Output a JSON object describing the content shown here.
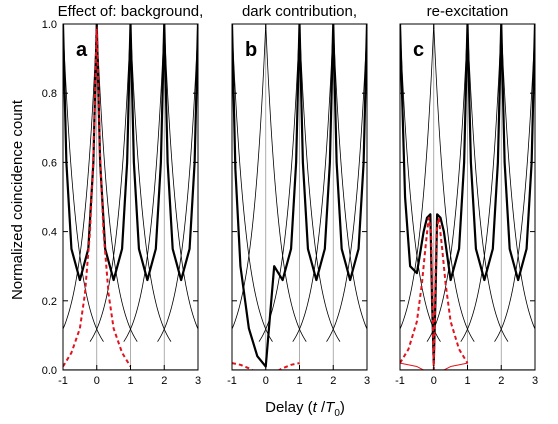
{
  "figure": {
    "ylabel": "Normalized coincidence count",
    "xlabel": {
      "main": "Delay (",
      "var": "t",
      "slash": " /",
      "T": "T",
      "sub": "0",
      "close": ")"
    }
  },
  "chart_data": [
    {
      "type": "line",
      "panel_letter": "a",
      "title": "Effect of: background,",
      "xlim": [
        -1,
        3
      ],
      "ylim": [
        0,
        1
      ],
      "xticks": [
        "-1",
        "0",
        "1",
        "2",
        "3"
      ],
      "yticks": [
        "0.0",
        "0.2",
        "0.4",
        "0.6",
        "0.8",
        "1.0"
      ],
      "series": [
        {
          "style": "thick-black",
          "x": [
            -1,
            -0.9,
            -0.75,
            -0.5,
            -0.25,
            -0.1,
            0,
            0.1,
            0.25,
            0.5,
            0.75,
            0.9,
            1,
            1.1,
            1.25,
            1.5,
            1.75,
            1.9,
            2,
            2.1,
            2.25,
            2.5,
            2.75,
            2.9,
            3
          ],
          "y": [
            1.0,
            0.6,
            0.35,
            0.26,
            0.35,
            0.6,
            1.0,
            0.6,
            0.35,
            0.26,
            0.35,
            0.6,
            1.0,
            0.6,
            0.35,
            0.26,
            0.35,
            0.6,
            1.0,
            0.6,
            0.35,
            0.26,
            0.35,
            0.6,
            1.0
          ]
        },
        {
          "style": "dashed-red",
          "x": [
            -1,
            -0.75,
            -0.5,
            -0.35,
            -0.2,
            -0.1,
            0,
            0.1,
            0.2,
            0.35,
            0.5,
            0.75,
            1
          ],
          "y": [
            0.01,
            0.05,
            0.12,
            0.22,
            0.4,
            0.62,
            0.99,
            0.62,
            0.4,
            0.22,
            0.12,
            0.05,
            0.01
          ]
        }
      ]
    },
    {
      "type": "line",
      "panel_letter": "b",
      "title": "dark contribution,",
      "xlim": [
        -1,
        3
      ],
      "ylim": [
        0,
        1
      ],
      "xticks": [
        "-1",
        "0",
        "1",
        "2",
        "3"
      ],
      "yticks": [],
      "series": [
        {
          "style": "thick-black",
          "x": [
            -1,
            -0.9,
            -0.75,
            -0.5,
            -0.25,
            0,
            0.25,
            0.5,
            0.75,
            0.9,
            1,
            1.1,
            1.25,
            1.5,
            1.75,
            1.9,
            2,
            2.1,
            2.25,
            2.5,
            2.75,
            2.9,
            3
          ],
          "y": [
            1.0,
            0.58,
            0.3,
            0.12,
            0.04,
            0.01,
            0.3,
            0.26,
            0.35,
            0.6,
            1.0,
            0.6,
            0.35,
            0.26,
            0.35,
            0.6,
            1.0,
            0.6,
            0.35,
            0.26,
            0.35,
            0.6,
            1.0
          ]
        },
        {
          "style": "dashed-red",
          "x": [
            -1,
            -0.75,
            -0.5,
            -0.25,
            0,
            0.25,
            0.5,
            0.75,
            1
          ],
          "y": [
            0.02,
            0.015,
            0.005,
            -0.008,
            -0.015,
            -0.008,
            0.005,
            0.015,
            0.02
          ]
        }
      ]
    },
    {
      "type": "line",
      "panel_letter": "c",
      "title": "re-excitation",
      "xlim": [
        -1,
        3
      ],
      "ylim": [
        0,
        1
      ],
      "xticks": [
        "-1",
        "0",
        "1",
        "2",
        "3"
      ],
      "yticks": [],
      "series": [
        {
          "style": "thick-black",
          "x": [
            -1,
            -0.85,
            -0.7,
            -0.5,
            -0.3,
            -0.2,
            -0.1,
            -0.05,
            0,
            0.05,
            0.1,
            0.2,
            0.3,
            0.5,
            0.75,
            0.9,
            1,
            1.1,
            1.25,
            1.5,
            1.75,
            1.9,
            2,
            2.1,
            2.25,
            2.5,
            2.75,
            2.9,
            3
          ],
          "y": [
            1.0,
            0.5,
            0.3,
            0.28,
            0.4,
            0.44,
            0.45,
            0.2,
            0.02,
            0.2,
            0.45,
            0.44,
            0.4,
            0.26,
            0.35,
            0.6,
            1.0,
            0.6,
            0.35,
            0.26,
            0.35,
            0.6,
            1.0,
            0.6,
            0.35,
            0.26,
            0.35,
            0.6,
            1.0
          ]
        },
        {
          "style": "dashed-red",
          "x": [
            -1,
            -0.75,
            -0.5,
            -0.35,
            -0.25,
            -0.15,
            -0.08,
            -0.03,
            0,
            0.03,
            0.08,
            0.15,
            0.25,
            0.35,
            0.5,
            0.75,
            1
          ],
          "y": [
            0.02,
            0.06,
            0.14,
            0.25,
            0.35,
            0.44,
            0.4,
            0.15,
            0.0,
            0.15,
            0.4,
            0.44,
            0.35,
            0.25,
            0.14,
            0.06,
            0.02
          ]
        },
        {
          "style": "thin-red",
          "x": [
            -1,
            -0.5,
            0,
            0.5,
            1
          ],
          "y": [
            0.02,
            0.01,
            -0.015,
            0.01,
            0.02
          ]
        }
      ]
    }
  ]
}
